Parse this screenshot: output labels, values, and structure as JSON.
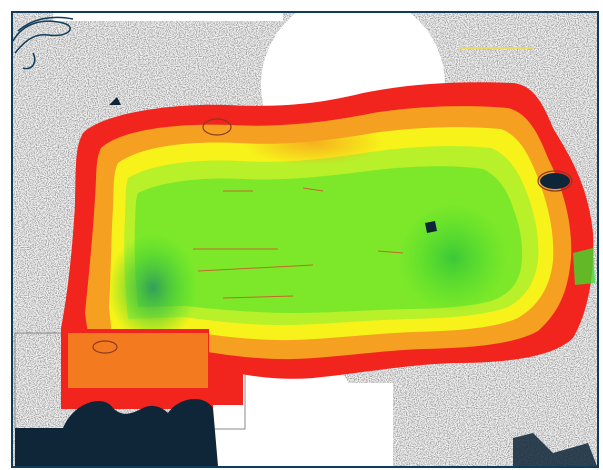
{
  "map": {
    "type": "heatmap",
    "palette": {
      "low": "#2f9a5c",
      "mid_low": "#3fdd2a",
      "mid": "#b8f02a",
      "mid_high": "#f7f21a",
      "high": "#f5a020",
      "max": "#f2241e"
    },
    "frame_color": "#0f3c5a",
    "background_color": "#f1f1f1",
    "obstacle_color": "#0f2638",
    "noise_color": "#222222"
  }
}
